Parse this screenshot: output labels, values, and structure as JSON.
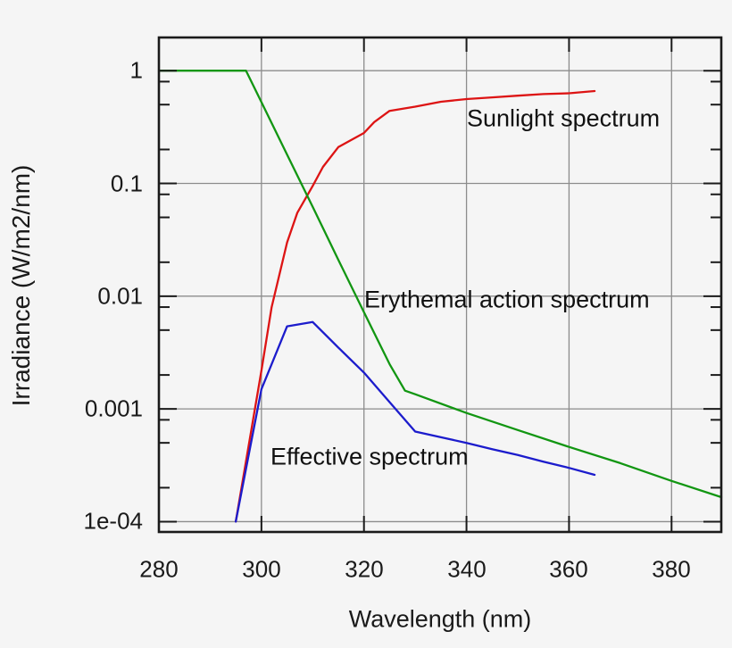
{
  "chart_data": {
    "type": "line",
    "title": "",
    "xlabel": "Wavelength (nm)",
    "ylabel": "Irradiance (W/m2/nm)",
    "grid": true,
    "legend_position": "inline-annotations",
    "x_axis": {
      "min": 280,
      "max": 389.7,
      "ticks": [
        280,
        300,
        320,
        340,
        360,
        380
      ]
    },
    "y_axis": {
      "scale": "log",
      "min": 8.1e-05,
      "max": 1.97,
      "ticks": [
        1,
        0.1,
        0.01,
        0.001,
        0.0001
      ],
      "tick_labels": [
        "1",
        "0.1",
        "0.01",
        "0.001",
        "1e-04"
      ],
      "minor_tick_multiples": [
        0.8,
        0.5,
        0.2
      ]
    },
    "series": [
      {
        "name": "Sunlight spectrum",
        "color": "#dd1414",
        "points": [
          [
            295,
            0.0001
          ],
          [
            300,
            0.0022
          ],
          [
            302,
            0.008
          ],
          [
            305,
            0.03
          ],
          [
            307,
            0.055
          ],
          [
            310,
            0.095
          ],
          [
            312,
            0.14
          ],
          [
            315,
            0.21
          ],
          [
            320,
            0.28
          ],
          [
            322,
            0.35
          ],
          [
            325,
            0.44
          ],
          [
            330,
            0.48
          ],
          [
            335,
            0.53
          ],
          [
            340,
            0.56
          ],
          [
            345,
            0.58
          ],
          [
            350,
            0.6
          ],
          [
            355,
            0.62
          ],
          [
            360,
            0.63
          ],
          [
            365,
            0.66
          ]
        ]
      },
      {
        "name": "Erythemal action spectrum",
        "color": "#129612",
        "points": [
          [
            280,
            1.0
          ],
          [
            297,
            1.0
          ],
          [
            300,
            0.525
          ],
          [
            305,
            0.18
          ],
          [
            310,
            0.062
          ],
          [
            315,
            0.021
          ],
          [
            320,
            0.0072
          ],
          [
            325,
            0.0025
          ],
          [
            328,
            0.00145
          ],
          [
            330,
            0.00135
          ],
          [
            340,
            0.00092
          ],
          [
            350,
            0.00065
          ],
          [
            360,
            0.00046
          ],
          [
            370,
            0.00033
          ],
          [
            380,
            0.00023
          ],
          [
            389.7,
            0.000165
          ]
        ]
      },
      {
        "name": "Effective spectrum",
        "color": "#1c1ccc",
        "points": [
          [
            295,
            0.0001
          ],
          [
            300,
            0.0015
          ],
          [
            305,
            0.0054
          ],
          [
            310,
            0.0059
          ],
          [
            315,
            0.0035
          ],
          [
            320,
            0.0021
          ],
          [
            325,
            0.00115
          ],
          [
            330,
            0.00063
          ],
          [
            335,
            0.00056
          ],
          [
            340,
            0.0005
          ],
          [
            345,
            0.00044
          ],
          [
            350,
            0.00039
          ],
          [
            355,
            0.00034
          ],
          [
            360,
            0.0003
          ],
          [
            365,
            0.00026
          ]
        ]
      }
    ],
    "colors": {
      "grid": "#8c8c8c",
      "frame": "#1a1a1a",
      "text": "#1a1a1a",
      "background": "#f5f5f5"
    }
  }
}
